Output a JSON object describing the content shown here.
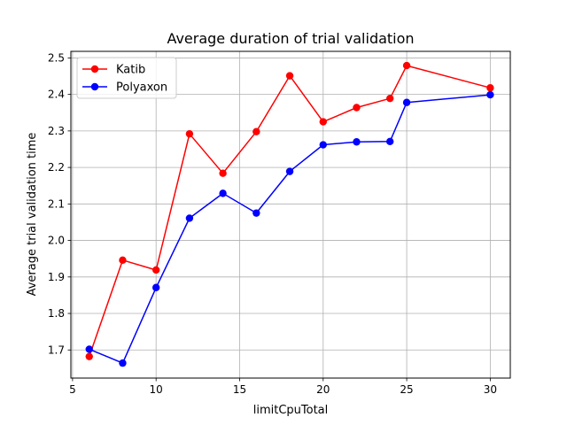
{
  "chart_data": {
    "type": "line",
    "title": "Average duration of trial validation",
    "xlabel": "limitCpuTotal",
    "ylabel": "Average trial validation time",
    "x": [
      6,
      8,
      10,
      12,
      14,
      16,
      18,
      20,
      22,
      24,
      25,
      30
    ],
    "xlim": [
      4.9,
      31.2
    ],
    "ylim": [
      1.623,
      2.518
    ],
    "xticks": [
      5,
      10,
      15,
      20,
      25,
      30
    ],
    "yticks": [
      1.7,
      1.8,
      1.9,
      2.0,
      2.1,
      2.2,
      2.3,
      2.4,
      2.5
    ],
    "ytick_labels": [
      "1.7",
      "1.8",
      "1.9",
      "2.0",
      "2.1",
      "2.2",
      "2.3",
      "2.4",
      "2.5"
    ],
    "grid": true,
    "legend_position": "top-left",
    "series": [
      {
        "name": "Katib",
        "color": "#ff0000",
        "marker": "circle",
        "values": [
          1.682,
          1.946,
          1.919,
          2.292,
          2.184,
          2.298,
          2.451,
          2.325,
          2.364,
          2.389,
          2.479,
          2.418
        ]
      },
      {
        "name": "Polyaxon",
        "color": "#0000ff",
        "marker": "circle",
        "values": [
          1.702,
          1.664,
          1.871,
          2.061,
          2.129,
          2.075,
          2.189,
          2.262,
          2.27,
          2.271,
          2.378,
          2.399
        ]
      }
    ]
  }
}
